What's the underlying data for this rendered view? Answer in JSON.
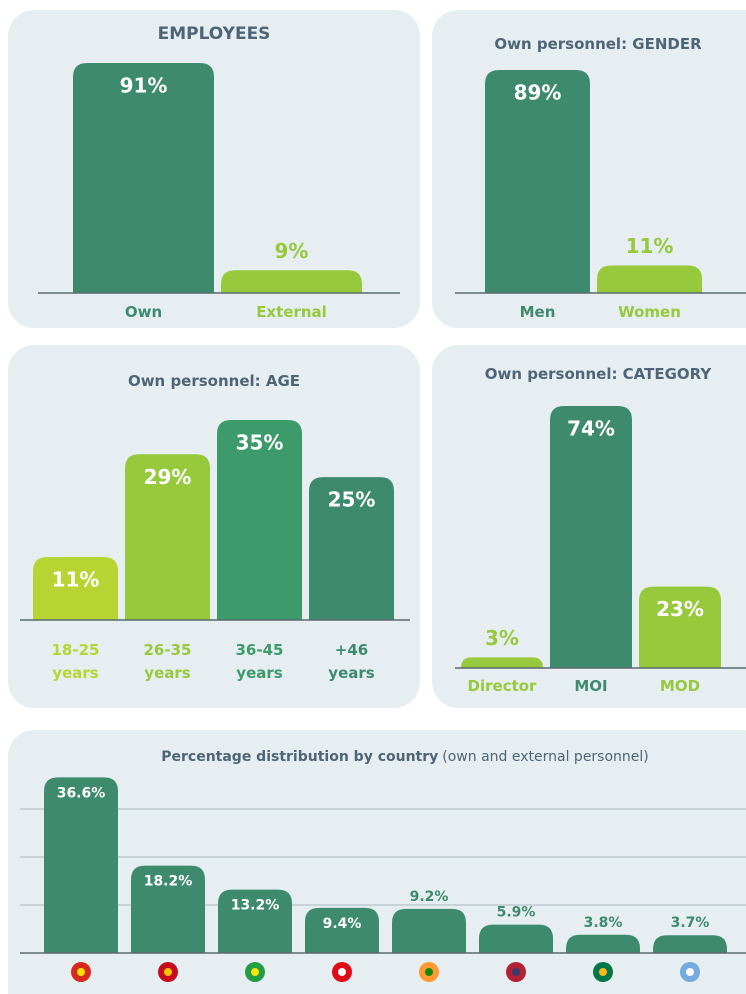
{
  "chart_data": [
    {
      "type": "bar",
      "title": "EMPLOYEES",
      "categories": [
        "Own",
        "External"
      ],
      "values": [
        91,
        9
      ],
      "value_labels": [
        "91%",
        "9%"
      ],
      "colors": [
        "#3e8a6d",
        "#97c93d"
      ]
    },
    {
      "type": "bar",
      "title": "Own personnel: GENDER",
      "categories": [
        "Men",
        "Women"
      ],
      "values": [
        89,
        11
      ],
      "value_labels": [
        "89%",
        "11%"
      ],
      "colors": [
        "#3e8a6d",
        "#97c93d"
      ]
    },
    {
      "type": "bar",
      "title": "Own personnel: AGE",
      "categories": [
        "18-25 years",
        "26-35 years",
        "36-45 years",
        "+46 years"
      ],
      "values": [
        11,
        29,
        35,
        25
      ],
      "value_labels": [
        "11%",
        "29%",
        "35%",
        "25%"
      ],
      "colors": [
        "#b8d432",
        "#97c93d",
        "#3d9a6a",
        "#3e8a6d"
      ]
    },
    {
      "type": "bar",
      "title": "Own personnel: CATEGORY",
      "categories": [
        "Director",
        "MOI",
        "MOD"
      ],
      "values": [
        3,
        74,
        23
      ],
      "value_labels": [
        "3%",
        "74%",
        "23%"
      ],
      "colors": [
        "#97c93d",
        "#3e8a6d",
        "#97c93d"
      ]
    },
    {
      "type": "bar",
      "title": "Percentage distribution by country",
      "subtitle": "(own and external personnel)",
      "categories": [
        null,
        null,
        null,
        null,
        null,
        null,
        null,
        null
      ],
      "values": [
        36.6,
        18.2,
        13.2,
        9.4,
        9.2,
        5.9,
        3.8,
        3.7
      ],
      "value_labels": [
        "36.6%",
        "18.2%",
        "13.2%",
        "9.4%",
        "9.2%",
        "5.9%",
        "3.8%",
        "3.7%"
      ],
      "colors": [
        "#3e8a6d",
        "#3e8a6d",
        "#3e8a6d",
        "#3e8a6d",
        "#3e8a6d",
        "#3e8a6d",
        "#3e8a6d",
        "#3e8a6d"
      ],
      "ylim": [
        0,
        40
      ],
      "yticks": [
        10,
        20,
        30
      ],
      "grid": true
    }
  ]
}
